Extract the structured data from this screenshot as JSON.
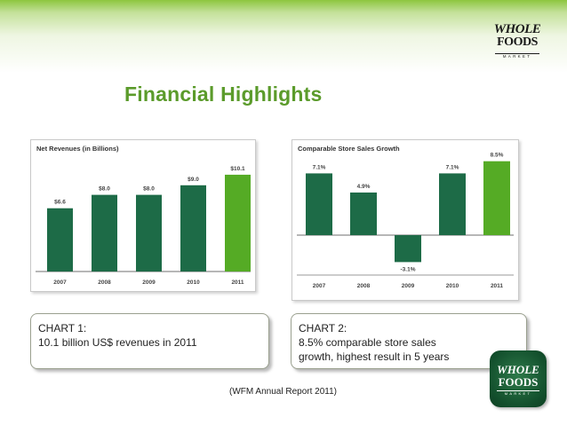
{
  "slide": {
    "title": "Financial Highlights",
    "source": "(WFM Annual Report 2011)"
  },
  "logo": {
    "line1": "WHOLE",
    "line2": "FOODS",
    "line3": "MARKET"
  },
  "callouts": {
    "chart1": {
      "heading": "CHART 1:",
      "text": "10.1 billion US$ revenues in 2011"
    },
    "chart2": {
      "heading": "CHART 2:",
      "line1": "8.5% comparable store sales",
      "line2": "growth, highest result in 5 years"
    }
  },
  "colors": {
    "dark_green": "#1d6b47",
    "bright_green": "#55ab25",
    "title_green": "#5b9b2b"
  },
  "chart_data": [
    {
      "type": "bar",
      "title": "Net Revenues (in Billions)",
      "categories": [
        "2007",
        "2008",
        "2009",
        "2010",
        "2011"
      ],
      "values": [
        6.6,
        8.0,
        8.0,
        9.0,
        10.1
      ],
      "labels": [
        "$6.6",
        "$8.0",
        "$8.0",
        "$9.0",
        "$10.1"
      ],
      "highlight": "2011",
      "ylim": [
        0,
        11
      ],
      "xlabel": "",
      "ylabel": "",
      "grid": false
    },
    {
      "type": "bar",
      "title": "Comparable Store Sales Growth",
      "categories": [
        "2007",
        "2008",
        "2009",
        "2010",
        "2011"
      ],
      "values": [
        7.1,
        4.9,
        -3.1,
        7.1,
        8.5
      ],
      "labels": [
        "7.1%",
        "4.9%",
        "-3.1%",
        "7.1%",
        "8.5%"
      ],
      "highlight": "2011",
      "ylim": [
        -3.5,
        9
      ],
      "xlabel": "",
      "ylabel": "",
      "grid": false
    }
  ]
}
